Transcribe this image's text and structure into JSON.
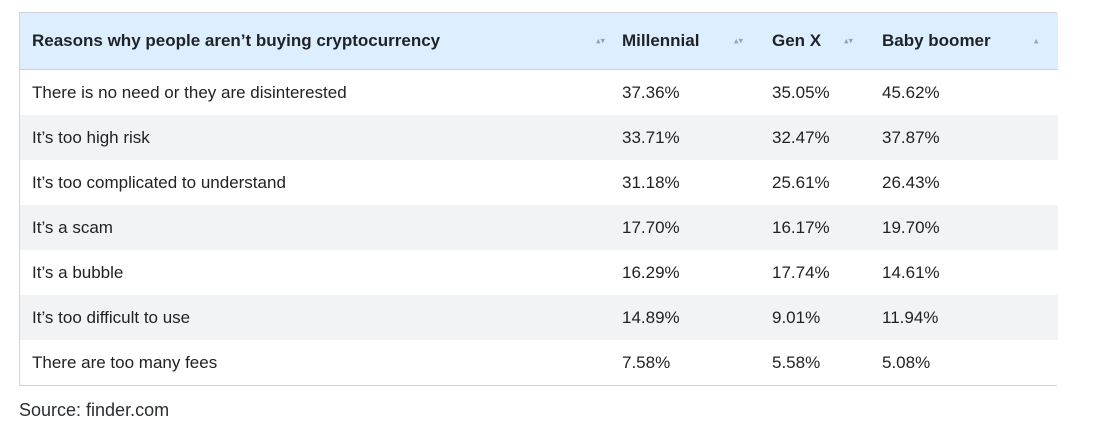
{
  "table": {
    "headers": [
      "Reasons why people aren’t buying cryptocurrency",
      "Millennial",
      "Gen X",
      "Baby boomer"
    ],
    "sort_icons": [
      "▴▾",
      "▴▾",
      "▴▾",
      "▴"
    ],
    "rows": [
      [
        "There is no need or they are disinterested",
        "37.36%",
        "35.05%",
        "45.62%"
      ],
      [
        "It’s too high risk",
        "33.71%",
        "32.47%",
        "37.87%"
      ],
      [
        "It’s too complicated to understand",
        "31.18%",
        "25.61%",
        "26.43%"
      ],
      [
        "It’s a scam",
        "17.70%",
        "16.17%",
        "19.70%"
      ],
      [
        "It’s a bubble",
        "16.29%",
        "17.74%",
        "14.61%"
      ],
      [
        "It’s too difficult to use",
        "14.89%",
        "9.01%",
        "11.94%"
      ],
      [
        "There are too many fees",
        "7.58%",
        "5.58%",
        "5.08%"
      ]
    ]
  },
  "source": "Source: finder.com"
}
